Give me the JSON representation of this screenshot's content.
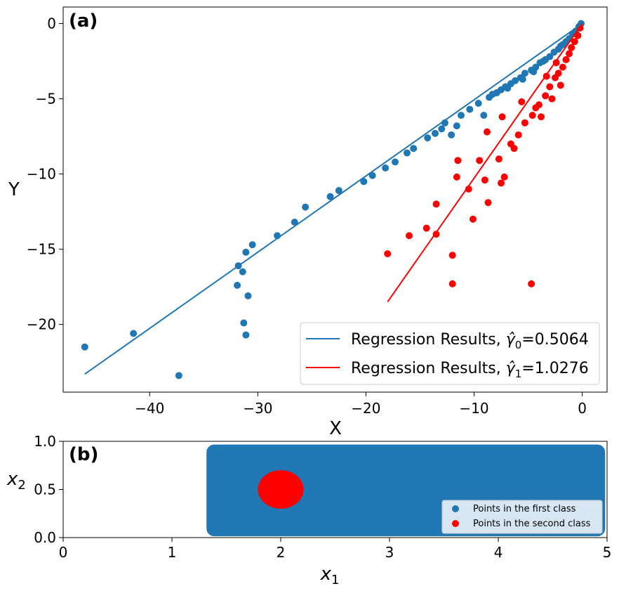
{
  "chart_data": [
    {
      "type": "scatter",
      "panel_label": "(a)",
      "xlabel": "X",
      "ylabel": "Y",
      "xlim": [
        -48,
        2.3
      ],
      "ylim": [
        -24.5,
        1.1
      ],
      "xticks": [
        -40,
        -30,
        -20,
        -10,
        0
      ],
      "yticks": [
        0,
        -5,
        -10,
        -15,
        -20
      ],
      "xtick_labels": [
        "−40",
        "−30",
        "−20",
        "−10",
        "0"
      ],
      "ytick_labels": [
        "0",
        "−5",
        "−10",
        "−15",
        "−20"
      ],
      "grid": false,
      "legend_position": "lower-right",
      "series": [
        {
          "name": "First class points",
          "kind": "scatter",
          "color": "#1f77b4",
          "points": [
            [
              -46.0,
              -21.5
            ],
            [
              -41.5,
              -20.6
            ],
            [
              -37.3,
              -23.4
            ],
            [
              -31.9,
              -17.4
            ],
            [
              -31.8,
              -16.1
            ],
            [
              -31.4,
              -16.5
            ],
            [
              -31.3,
              -19.9
            ],
            [
              -31.1,
              -20.7
            ],
            [
              -30.9,
              -18.1
            ],
            [
              -31.1,
              -15.2
            ],
            [
              -30.5,
              -14.7
            ],
            [
              -28.2,
              -14.1
            ],
            [
              -26.6,
              -13.2
            ],
            [
              -25.6,
              -12.2
            ],
            [
              -23.3,
              -11.5
            ],
            [
              -22.5,
              -11.1
            ],
            [
              -20.2,
              -10.5
            ],
            [
              -19.4,
              -10.1
            ],
            [
              -18.2,
              -9.6
            ],
            [
              -17.3,
              -9.2
            ],
            [
              -16.2,
              -8.6
            ],
            [
              -15.6,
              -8.3
            ],
            [
              -14.3,
              -7.6
            ],
            [
              -13.6,
              -7.3
            ],
            [
              -12.7,
              -6.6
            ],
            [
              -12.1,
              -7.4
            ],
            [
              -11.6,
              -6.8
            ],
            [
              -11.2,
              -6.1
            ],
            [
              -10.4,
              -5.7
            ],
            [
              -9.6,
              -5.3
            ],
            [
              -9.1,
              -6.1
            ],
            [
              -8.6,
              -4.9
            ],
            [
              -7.9,
              -4.6
            ],
            [
              -7.5,
              -4.4
            ],
            [
              -7.1,
              -4.2
            ],
            [
              -6.6,
              -4.0
            ],
            [
              -6.2,
              -3.8
            ],
            [
              -5.7,
              -3.6
            ],
            [
              -5.3,
              -3.3
            ],
            [
              -4.7,
              -3.1
            ],
            [
              -4.3,
              -2.9
            ],
            [
              -3.9,
              -2.6
            ],
            [
              -3.4,
              -2.4
            ],
            [
              -3.0,
              -2.2
            ],
            [
              -2.6,
              -1.9
            ],
            [
              -2.2,
              -1.7
            ],
            [
              -1.8,
              -1.4
            ],
            [
              -1.5,
              -1.2
            ],
            [
              -1.2,
              -1.0
            ],
            [
              -0.9,
              -0.7
            ],
            [
              -0.6,
              -0.5
            ],
            [
              -0.3,
              -0.2
            ],
            [
              -0.1,
              0.0
            ],
            [
              -5.5,
              -3.7
            ],
            [
              -4.5,
              -3.2
            ],
            [
              -13.0,
              -7.0
            ],
            [
              -8.3,
              -4.7
            ],
            [
              -6.9,
              -4.3
            ],
            [
              -3.6,
              -2.5
            ],
            [
              -2.0,
              -1.5
            ]
          ]
        },
        {
          "name": "Second class points",
          "kind": "scatter",
          "color": "#ff0000",
          "points": [
            [
              -18.0,
              -15.3
            ],
            [
              -16.0,
              -14.1
            ],
            [
              -14.4,
              -13.6
            ],
            [
              -13.5,
              -12.0
            ],
            [
              -13.5,
              -14.0
            ],
            [
              -12.0,
              -15.4
            ],
            [
              -12.0,
              -17.3
            ],
            [
              -11.6,
              -10.2
            ],
            [
              -11.5,
              -9.1
            ],
            [
              -10.5,
              -11.0
            ],
            [
              -10.1,
              -13.0
            ],
            [
              -9.5,
              -9.1
            ],
            [
              -9.0,
              -10.4
            ],
            [
              -8.7,
              -11.9
            ],
            [
              -7.7,
              -9.0
            ],
            [
              -7.5,
              -10.6
            ],
            [
              -7.2,
              -10.2
            ],
            [
              -6.6,
              -8.0
            ],
            [
              -6.3,
              -8.3
            ],
            [
              -5.9,
              -7.4
            ],
            [
              -5.3,
              -6.6
            ],
            [
              -4.7,
              -17.3
            ],
            [
              -4.6,
              -6.1
            ],
            [
              -4.3,
              -5.6
            ],
            [
              -4.0,
              -5.4
            ],
            [
              -3.8,
              -6.2
            ],
            [
              -3.4,
              -4.8
            ],
            [
              -3.0,
              -4.2
            ],
            [
              -2.8,
              -5.0
            ],
            [
              -2.5,
              -3.6
            ],
            [
              -2.2,
              -3.3
            ],
            [
              -2.0,
              -4.1
            ],
            [
              -1.8,
              -2.9
            ],
            [
              -1.5,
              -2.4
            ],
            [
              -1.2,
              -2.0
            ],
            [
              -1.0,
              -1.6
            ],
            [
              -0.7,
              -1.2
            ],
            [
              -0.4,
              -0.8
            ],
            [
              -0.2,
              -0.3
            ],
            [
              -8.8,
              -7.2
            ],
            [
              -7.4,
              -6.2
            ],
            [
              -5.6,
              -5.2
            ],
            [
              -3.3,
              -3.5
            ],
            [
              -2.4,
              -2.6
            ]
          ]
        },
        {
          "name": "Regression Results, γ̂0=0.5064",
          "kind": "line",
          "color": "#1f77b4",
          "x": [
            -46.0,
            0.0
          ],
          "y": [
            -23.3,
            0.0
          ]
        },
        {
          "name": "Regression Results, γ̂1=1.0276",
          "kind": "line",
          "color": "#ff0000",
          "x": [
            -18.0,
            0.0
          ],
          "y": [
            -18.5,
            0.0
          ]
        }
      ],
      "legend": [
        {
          "prefix": "Regression Results, ",
          "symbol": "γ̂",
          "sub": "0",
          "value": "=0.5064",
          "color": "#1f77b4"
        },
        {
          "prefix": "Regression Results, ",
          "symbol": "γ̂",
          "sub": "1",
          "value": "=1.0276",
          "color": "#ff0000"
        }
      ]
    },
    {
      "type": "scatter",
      "panel_label": "(b)",
      "xlabel": "x",
      "xlabel_sub": "1",
      "ylabel": "x",
      "ylabel_sub": "2",
      "xlim": [
        0,
        5
      ],
      "ylim": [
        0,
        1
      ],
      "xticks": [
        0,
        1,
        2,
        3,
        4,
        5
      ],
      "yticks": [
        0.0,
        0.5,
        1.0
      ],
      "xtick_labels": [
        "0",
        "1",
        "2",
        "3",
        "4",
        "5"
      ],
      "ytick_labels": [
        "0.0",
        "0.5",
        "1.0"
      ],
      "grid": false,
      "legend_position": "lower-right",
      "series": [
        {
          "name": "Points in the first class",
          "kind": "region",
          "shape": "rectangle",
          "color": "#1f77b4",
          "x_range": [
            1.35,
            4.95
          ],
          "y_range": [
            0.05,
            0.93
          ]
        },
        {
          "name": "Points in the second class",
          "kind": "region",
          "shape": "disc",
          "color": "#ff0000",
          "center": [
            2.0,
            0.5
          ],
          "radius": [
            0.21,
            0.2
          ]
        }
      ],
      "legend": [
        {
          "label": "Points in the first class",
          "color": "#1f77b4"
        },
        {
          "label": "Points in the second class",
          "color": "#ff0000"
        }
      ]
    }
  ]
}
